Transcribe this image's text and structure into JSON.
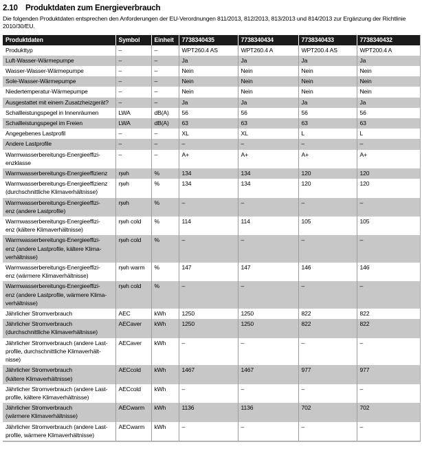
{
  "page": {
    "section_number": "2.10",
    "section_title": "Produktdaten zum Energieverbrauch",
    "intro": "Die folgenden Produktdaten entsprechen den Anforderungen der EU-Verordnungen 811/2013, 812/2013, 813/2013 und 814/2013 zur Ergänzung der Richtlinie 2010/30/EU."
  },
  "colors": {
    "table_header_bg": "#1b1b1b",
    "table_header_text": "#ffffff",
    "row_shaded_bg": "#c7c7c7",
    "grid_line": "#9c9c9c"
  },
  "table": {
    "headers": [
      "Produktdaten",
      "Symbol",
      "Einheit",
      "7738340435",
      "7738340434",
      "7738340433",
      "7738340432"
    ],
    "rows": [
      {
        "label": "Produkttyp",
        "symbol": "–",
        "unit": "–",
        "values": [
          "WPT260.4 AS",
          "WPT260.4 A",
          "WPT200.4 AS",
          "WPT200.4 A"
        ],
        "shaded": false
      },
      {
        "label": "Luft-Wasser-Wärmepumpe",
        "symbol": "–",
        "unit": "–",
        "values": [
          "Ja",
          "Ja",
          "Ja",
          "Ja"
        ],
        "shaded": true
      },
      {
        "label": "Wasser-Wasser-Wärmepumpe",
        "symbol": "–",
        "unit": "–",
        "values": [
          "Nein",
          "Nein",
          "Nein",
          "Nein"
        ],
        "shaded": false
      },
      {
        "label": "Sole-Wasser-Wärmepumpe",
        "symbol": "–",
        "unit": "–",
        "values": [
          "Nein",
          "Nein",
          "Nein",
          "Nein"
        ],
        "shaded": true
      },
      {
        "label": "Niedertemperatur-Wärmepumpe",
        "symbol": "–",
        "unit": "–",
        "values": [
          "Nein",
          "Nein",
          "Nein",
          "Nein"
        ],
        "shaded": false
      },
      {
        "label": "Ausgestattet mit einem Zusatzheizgerät?",
        "symbol": "–",
        "unit": "–",
        "values": [
          "Ja",
          "Ja",
          "Ja",
          "Ja"
        ],
        "shaded": true
      },
      {
        "label": "Schallleistungspegel in Innenräumen",
        "symbol": "LWA",
        "unit": "dB(A)",
        "values": [
          "56",
          "56",
          "56",
          "56"
        ],
        "shaded": false
      },
      {
        "label": "Schallleistungspegel im Freien",
        "symbol": "LWA",
        "unit": "dB(A)",
        "values": [
          "63",
          "63",
          "63",
          "63"
        ],
        "shaded": true
      },
      {
        "label": "Angegebenes Lastprofil",
        "symbol": "–",
        "unit": "–",
        "values": [
          "XL",
          "XL",
          "L",
          "L"
        ],
        "shaded": false
      },
      {
        "label": "Andere Lastprofile",
        "symbol": "–",
        "unit": "–",
        "values": [
          "–",
          "–",
          "–",
          "–"
        ],
        "shaded": true
      },
      {
        "label": "Warmwasserbereitungs-Energieeffizi-\nenzklasse",
        "symbol": "–",
        "unit": "–",
        "values": [
          "A+",
          "A+",
          "A+",
          "A+"
        ],
        "shaded": false
      },
      {
        "label": "Warmwasserbereitungs-Energieeffizienz",
        "symbol": "ηwh",
        "unit": "%",
        "values": [
          "134",
          "134",
          "120",
          "120"
        ],
        "shaded": true
      },
      {
        "label": "Warmwasserbereitungs-Energieeffizienz\n(durchschnittliche Klimaverhältnisse)",
        "symbol": "ηwh",
        "unit": "%",
        "values": [
          "134",
          "134",
          "120",
          "120"
        ],
        "shaded": false
      },
      {
        "label": "Warmwasserbereitungs-Energieeffizi-\nenz (andere Lastprofile)",
        "symbol": "ηwh",
        "unit": "%",
        "values": [
          "–",
          "–",
          "–",
          "–"
        ],
        "shaded": true
      },
      {
        "label": "Warmwasserbereitungs-Energieeffizi-\nenz (kältere Klimaverhältnisse)",
        "symbol": "ηwh cold",
        "unit": "%",
        "values": [
          "114",
          "114",
          "105",
          "105"
        ],
        "shaded": false
      },
      {
        "label": "Warmwasserbereitungs-Energieeffizi-\nenz (andere Lastprofile, kältere Klima-\nverhältnisse)",
        "symbol": "ηwh cold",
        "unit": "%",
        "values": [
          "–",
          "–",
          "–",
          "–"
        ],
        "shaded": true
      },
      {
        "label": "Warmwasserbereitungs-Energieeffizi-\nenz (wärmere Klimaverhältnisse)",
        "symbol": "ηwh warm",
        "unit": "%",
        "values": [
          "147",
          "147",
          "146",
          "146"
        ],
        "shaded": false
      },
      {
        "label": "Warmwasserbereitungs-Energieeffizi-\nenz (andere Lastprofile, wärmere Klima-\nverhältnisse)",
        "symbol": "ηwh cold",
        "unit": "%",
        "values": [
          "–",
          "–",
          "–",
          "–"
        ],
        "shaded": true
      },
      {
        "label": "Jährlicher Stromverbrauch",
        "symbol": "AEC",
        "unit": "kWh",
        "values": [
          "1250",
          "1250",
          "822",
          "822"
        ],
        "shaded": false
      },
      {
        "label": "Jährlicher Stromverbrauch\n(durchschnittliche Klimaverhältnisse)",
        "symbol": "AECaver",
        "unit": "kWh",
        "values": [
          "1250",
          "1250",
          "822",
          "822"
        ],
        "shaded": true
      },
      {
        "label": "Jährlicher Stromverbrauch (andere Last-\nprofile, durchschnittliche Klimaverhält-\nnisse)",
        "symbol": "AECaver",
        "unit": "kWh",
        "values": [
          "–",
          "–",
          "–",
          "–"
        ],
        "shaded": false
      },
      {
        "label": "Jährlicher Stromverbrauch\n(kältere Klimaverhältnisse)",
        "symbol": "AECcold",
        "unit": "kWh",
        "values": [
          "1467",
          "1467",
          "977",
          "977"
        ],
        "shaded": true
      },
      {
        "label": "Jährlicher Stromverbrauch (andere Last-\nprofile, kältere Klimaverhältnisse)",
        "symbol": "AECcold",
        "unit": "kWh",
        "values": [
          "–",
          "–",
          "–",
          "–"
        ],
        "shaded": false
      },
      {
        "label": "Jährlicher Stromverbrauch\n(wärmere Klimaverhältnisse)",
        "symbol": "AECwarm",
        "unit": "kWh",
        "values": [
          "1136",
          "1136",
          "702",
          "702"
        ],
        "shaded": true
      },
      {
        "label": "Jährlicher Stromverbrauch (andere Last-\nprofile, wärmere Klimaverhältnisse)",
        "symbol": "AECwarm",
        "unit": "kWh",
        "values": [
          "–",
          "–",
          "–",
          "–"
        ],
        "shaded": false
      }
    ]
  }
}
